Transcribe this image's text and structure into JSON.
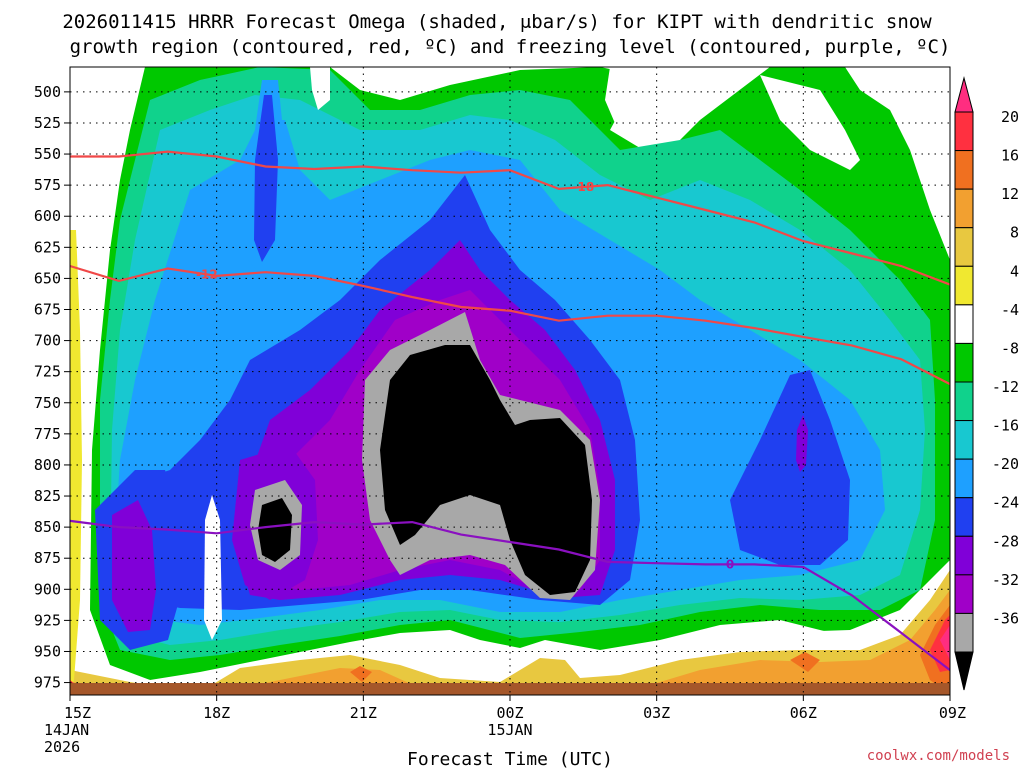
{
  "chart_data": {
    "type": "heatmap",
    "title_line1": "2026011415 HRRR Forecast Omega (shaded, μbar/s) for KIPT with dendritic snow",
    "title_line2": "growth region (contoured, red, ºC) and freezing level (contoured, purple, ºC)",
    "xlabel": "Forecast Time (UTC)",
    "credit": "coolwx.com/models",
    "x_ticks": [
      {
        "hour": 0,
        "label": "15Z",
        "sub1": "14JAN",
        "sub2": "2026"
      },
      {
        "hour": 3,
        "label": "18Z",
        "sub1": "",
        "sub2": ""
      },
      {
        "hour": 6,
        "label": "21Z",
        "sub1": "",
        "sub2": ""
      },
      {
        "hour": 9,
        "label": "00Z",
        "sub1": "15JAN",
        "sub2": ""
      },
      {
        "hour": 12,
        "label": "03Z",
        "sub1": "",
        "sub2": ""
      },
      {
        "hour": 15,
        "label": "06Z",
        "sub1": "",
        "sub2": ""
      },
      {
        "hour": 18,
        "label": "09Z",
        "sub1": "",
        "sub2": ""
      }
    ],
    "xlim": [
      0,
      18
    ],
    "y_ticks": [
      500,
      525,
      550,
      575,
      600,
      625,
      650,
      675,
      700,
      725,
      750,
      775,
      800,
      825,
      850,
      875,
      900,
      925,
      950,
      975
    ],
    "ylim": [
      480,
      985
    ],
    "colorbar": {
      "tick_labels": [
        "20",
        "16",
        "12",
        "8",
        "4",
        "-4",
        "-8",
        "-12",
        "-16",
        "-20",
        "-24",
        "-28",
        "-32",
        "-36"
      ],
      "colors": [
        "#ff2d80",
        "#ff3040",
        "#f07020",
        "#f2a030",
        "#e8c840",
        "#f0e830",
        "#ffffff",
        "#00c800",
        "#10d28c",
        "#18c8d0",
        "#1ea0ff",
        "#2040f0",
        "#8000d8",
        "#a000c8",
        "#a8a8a8",
        "#000000"
      ]
    },
    "contours": [
      {
        "name": "-18",
        "color": "#f04848",
        "points": [
          [
            0,
            552
          ],
          [
            1,
            552
          ],
          [
            2,
            548
          ],
          [
            3,
            552
          ],
          [
            4,
            560
          ],
          [
            5,
            562
          ],
          [
            6,
            560
          ],
          [
            7,
            563
          ],
          [
            8,
            565
          ],
          [
            9,
            563
          ],
          [
            10,
            578
          ],
          [
            11,
            575
          ],
          [
            12,
            585
          ],
          [
            13,
            595
          ],
          [
            14,
            605
          ],
          [
            15,
            620
          ],
          [
            16,
            630
          ],
          [
            17,
            640
          ],
          [
            18,
            655
          ]
        ]
      },
      {
        "name": "-12",
        "color": "#f04848",
        "points": [
          [
            0,
            640
          ],
          [
            1,
            652
          ],
          [
            2,
            642
          ],
          [
            3,
            648
          ],
          [
            4,
            645
          ],
          [
            5,
            648
          ],
          [
            6,
            656
          ],
          [
            7,
            665
          ],
          [
            8,
            673
          ],
          [
            9,
            676
          ],
          [
            10,
            684
          ],
          [
            11,
            680
          ],
          [
            12,
            680
          ],
          [
            13,
            684
          ],
          [
            14,
            690
          ],
          [
            15,
            697
          ],
          [
            16,
            704
          ],
          [
            17,
            715
          ],
          [
            18,
            735
          ]
        ]
      },
      {
        "name": "0",
        "color": "#8a10c0",
        "points": [
          [
            0,
            845
          ],
          [
            1,
            850
          ],
          [
            2,
            852
          ],
          [
            3,
            855
          ],
          [
            4,
            850
          ],
          [
            5,
            846
          ],
          [
            6,
            848
          ],
          [
            7,
            846
          ],
          [
            8,
            856
          ],
          [
            9,
            862
          ],
          [
            10,
            868
          ],
          [
            11,
            878
          ],
          [
            12,
            879
          ],
          [
            13,
            880
          ],
          [
            14,
            880
          ],
          [
            15,
            882
          ],
          [
            16,
            905
          ],
          [
            17,
            935
          ],
          [
            18,
            965
          ]
        ]
      }
    ]
  }
}
